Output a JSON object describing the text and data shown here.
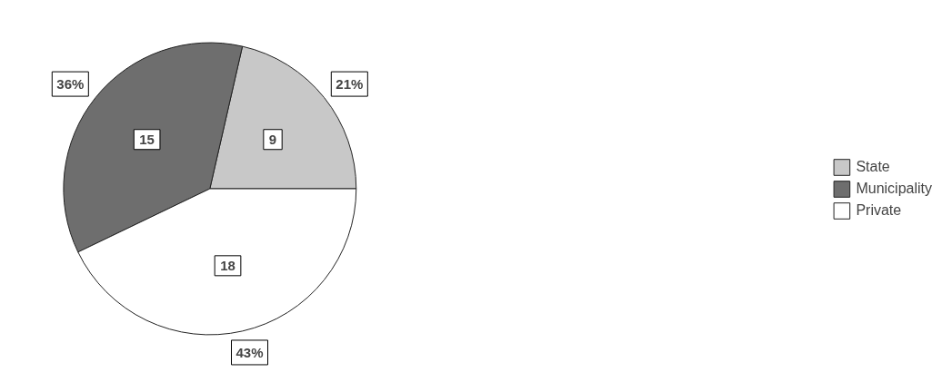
{
  "chart_data": {
    "type": "pie",
    "categories": [
      "State",
      "Municipality",
      "Private"
    ],
    "values": [
      9,
      15,
      18
    ],
    "colors": [
      "#c8c8c8",
      "#6e6e6e",
      "#ffffff"
    ],
    "data_labels": true,
    "annotations": [
      "21%",
      "36%",
      "43%"
    ],
    "legend": "right"
  }
}
